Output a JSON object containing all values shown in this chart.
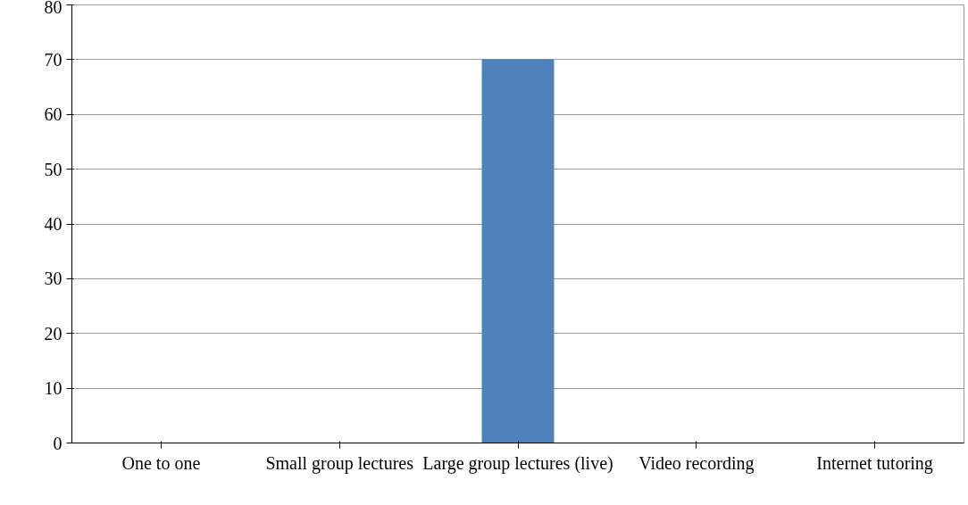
{
  "chart_data": {
    "type": "bar",
    "categories": [
      "One to one",
      "Small group lectures",
      "Large group lectures (live)",
      "Video recording",
      "Internet tutoring"
    ],
    "values": [
      0,
      0,
      70,
      0,
      0
    ],
    "color": "#4f81bd",
    "ylim": [
      0,
      80
    ],
    "yticks": [
      0,
      10,
      20,
      30,
      40,
      50,
      60,
      70,
      80
    ],
    "grid": "y"
  }
}
